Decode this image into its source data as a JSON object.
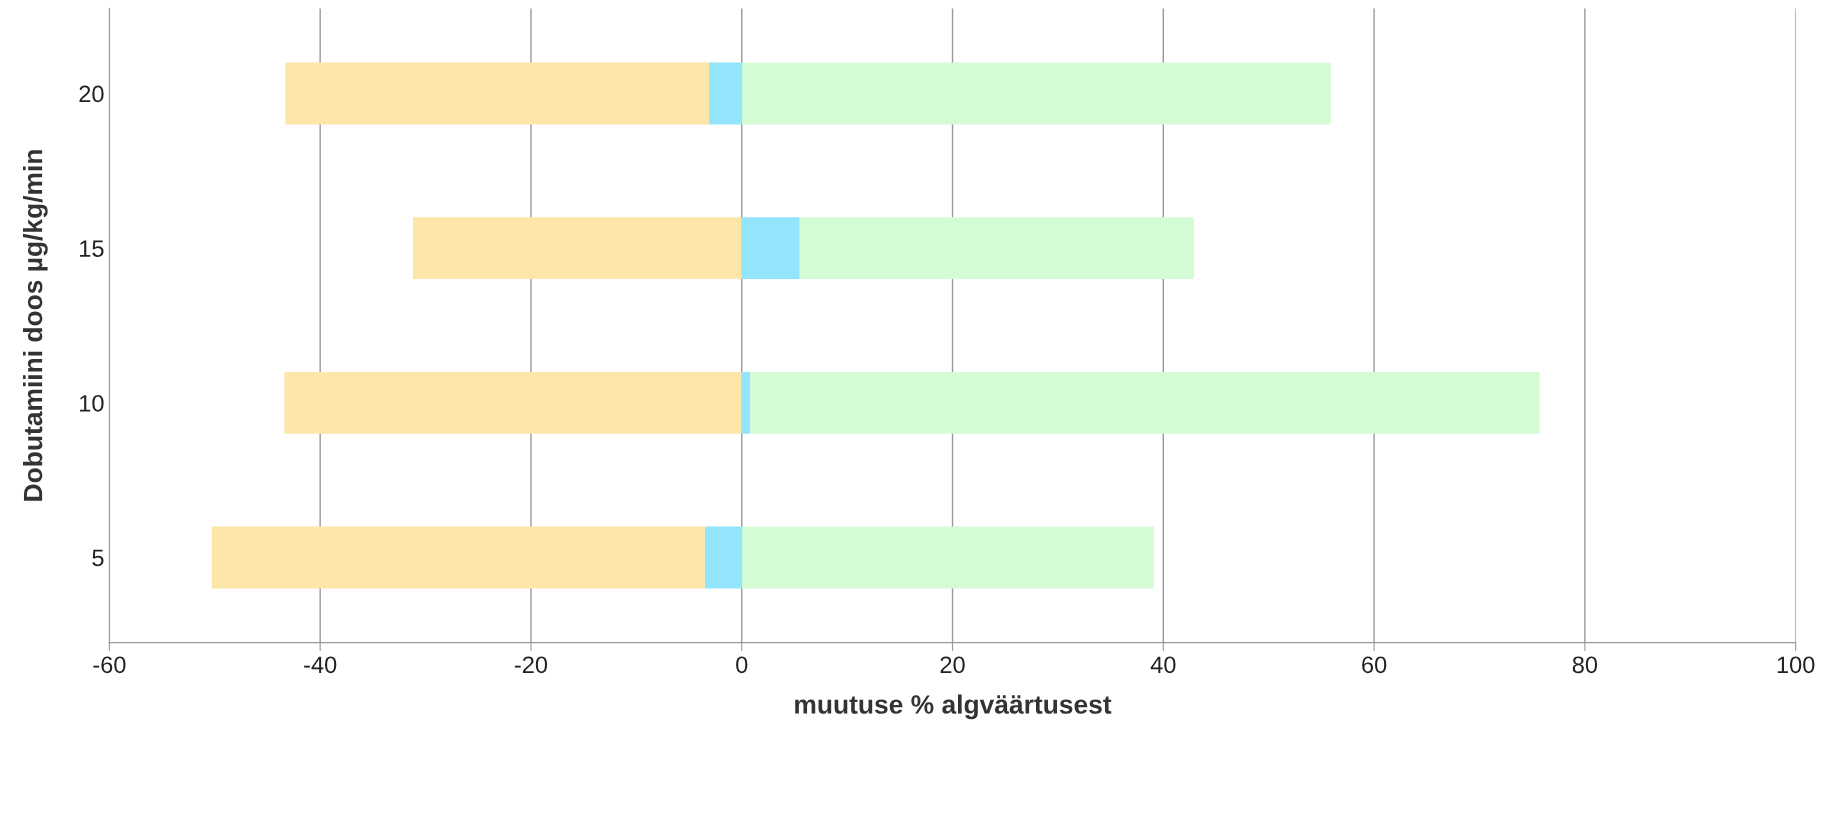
{
  "chart_data": {
    "type": "bar",
    "orientation": "horizontal",
    "stacked": true,
    "xlabel": "muutuse % algväärtusest",
    "ylabel": "Dobutamiini doos µg/kg/min",
    "categories": [
      "20",
      "15",
      "10",
      "5"
    ],
    "series": [
      {
        "color": "#92e5fc",
        "values": [
          -3.1,
          5.5,
          0.8,
          -3.5
        ]
      },
      {
        "color": "#fde6a8",
        "values": [
          -40.2,
          -31.2,
          -43.4,
          -46.8
        ]
      },
      {
        "color": "#d4fcd4",
        "values": [
          55.9,
          37.4,
          74.9,
          39.1
        ]
      }
    ],
    "xlim": [
      -60,
      100
    ],
    "xticks": [
      -60,
      -40,
      -20,
      0,
      20,
      40,
      60,
      80,
      100
    ],
    "grid": "x",
    "legend": false
  }
}
